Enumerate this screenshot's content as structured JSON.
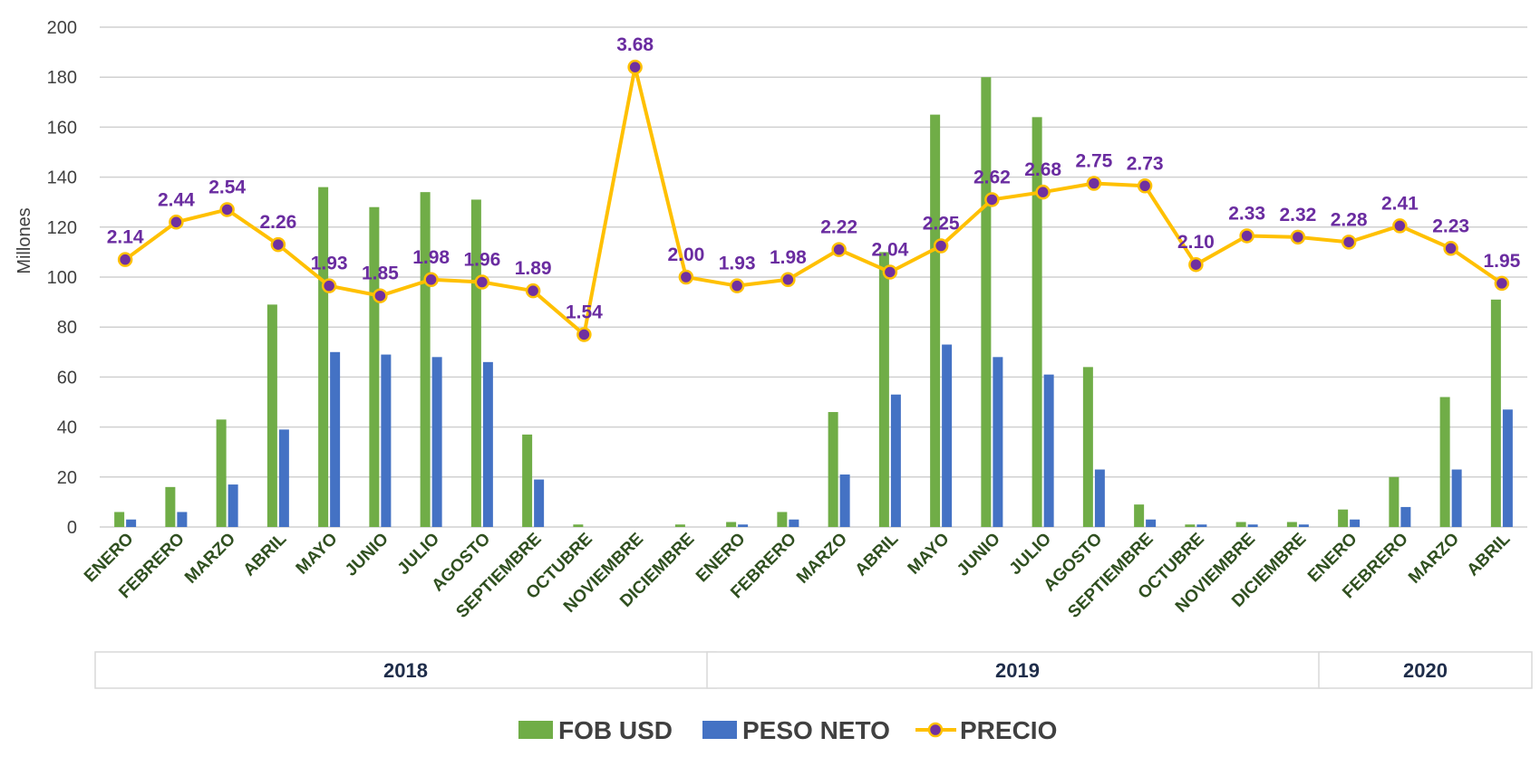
{
  "chart_data": {
    "type": "bar",
    "ylabel": "Millones",
    "ylim": [
      0,
      200
    ],
    "yticks": [
      0,
      20,
      40,
      60,
      80,
      100,
      120,
      140,
      160,
      180,
      200
    ],
    "grid": true,
    "legend_position": "bottom",
    "categories": [
      "ENERO",
      "FEBRERO",
      "MARZO",
      "ABRIL",
      "MAYO",
      "JUNIO",
      "JULIO",
      "AGOSTO",
      "SEPTIEMBRE",
      "OCTUBRE",
      "NOVIEMBRE",
      "DICIEMBRE",
      "ENERO",
      "FEBRERO",
      "MARZO",
      "ABRIL",
      "MAYO",
      "JUNIO",
      "JULIO",
      "AGOSTO",
      "SEPTIEMBRE",
      "OCTUBRE",
      "NOVIEMBRE",
      "DICIEMBRE",
      "ENERO",
      "FEBRERO",
      "MARZO",
      "ABRIL"
    ],
    "years": [
      {
        "label": "2018",
        "first": 0,
        "last": 11
      },
      {
        "label": "2019",
        "first": 12,
        "last": 23
      },
      {
        "label": "2020",
        "first": 24,
        "last": 27
      }
    ],
    "series": [
      {
        "name": "FOB USD",
        "type": "bar",
        "color": "#70ad47",
        "values": [
          6,
          16,
          43,
          89,
          136,
          128,
          134,
          131,
          37,
          1,
          0,
          1,
          2,
          6,
          46,
          110,
          165,
          180,
          164,
          64,
          9,
          1,
          2,
          2,
          7,
          20,
          52,
          91
        ]
      },
      {
        "name": "PESO NETO",
        "type": "bar",
        "color": "#4472c4",
        "values": [
          3,
          6,
          17,
          39,
          70,
          69,
          68,
          66,
          19,
          0,
          0,
          0,
          1,
          3,
          21,
          53,
          73,
          68,
          61,
          23,
          3,
          1,
          1,
          1,
          3,
          8,
          23,
          47
        ]
      },
      {
        "name": "PRECIO",
        "type": "line",
        "color": "#ffc000",
        "marker_color": "#7030a0",
        "values": [
          2.14,
          2.44,
          2.54,
          2.26,
          1.93,
          1.85,
          1.98,
          1.96,
          1.89,
          1.54,
          3.68,
          2.0,
          1.93,
          1.98,
          2.22,
          2.04,
          2.25,
          2.62,
          2.68,
          2.75,
          2.73,
          2.1,
          2.33,
          2.32,
          2.28,
          2.41,
          2.23,
          1.95
        ],
        "labels": [
          "2.14",
          "2.44",
          "2.54",
          "2.26",
          "1.93",
          "1.85",
          "1.98",
          "1.96",
          "1.89",
          "1.54",
          "3.68",
          "2.00",
          "1.93",
          "1.98",
          "2.22",
          "2.04",
          "2.25",
          "2.62",
          "2.68",
          "2.75",
          "2.73",
          "2.10",
          "2.33",
          "2.32",
          "2.28",
          "2.41",
          "2.23",
          "1.95"
        ],
        "display_scale": 50
      }
    ]
  }
}
